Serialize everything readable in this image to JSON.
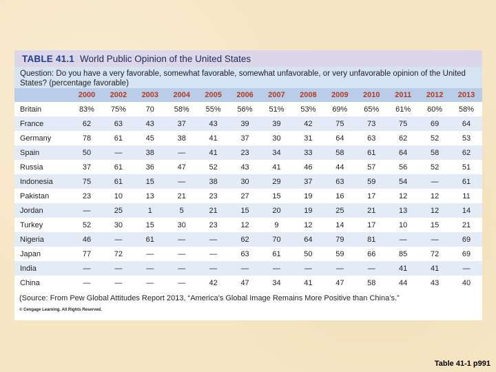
{
  "table": {
    "label": "TABLE 41.1",
    "title": "World Public Opinion of the United States",
    "question": "Question: Do you have a very favorable, somewhat favorable, somewhat unfavorable, or very unfavorable opinion of the United States? (percentage favorable)",
    "columns": [
      "2000",
      "2002",
      "2003",
      "2004",
      "2005",
      "2006",
      "2007",
      "2008",
      "2009",
      "2010",
      "2011",
      "2012",
      "2013"
    ],
    "rows": [
      {
        "country": "Britain",
        "values": [
          "83%",
          "75%",
          "70",
          "58%",
          "55%",
          "56%",
          "51%",
          "53%",
          "69%",
          "65%",
          "61%",
          "60%",
          "58%"
        ]
      },
      {
        "country": "France",
        "values": [
          "62",
          "63",
          "43",
          "37",
          "43",
          "39",
          "39",
          "42",
          "75",
          "73",
          "75",
          "69",
          "64"
        ]
      },
      {
        "country": "Germany",
        "values": [
          "78",
          "61",
          "45",
          "38",
          "41",
          "37",
          "30",
          "31",
          "64",
          "63",
          "62",
          "52",
          "53"
        ]
      },
      {
        "country": "Spain",
        "values": [
          "50",
          "—",
          "38",
          "—",
          "41",
          "23",
          "34",
          "33",
          "58",
          "61",
          "64",
          "58",
          "62"
        ]
      },
      {
        "country": "Russia",
        "values": [
          "37",
          "61",
          "36",
          "47",
          "52",
          "43",
          "41",
          "46",
          "44",
          "57",
          "56",
          "52",
          "51"
        ]
      },
      {
        "country": "Indonesia",
        "values": [
          "75",
          "61",
          "15",
          "—",
          "38",
          "30",
          "29",
          "37",
          "63",
          "59",
          "54",
          "—",
          "61"
        ]
      },
      {
        "country": "Pakistan",
        "values": [
          "23",
          "10",
          "13",
          "21",
          "23",
          "27",
          "15",
          "19",
          "16",
          "17",
          "12",
          "12",
          "11"
        ]
      },
      {
        "country": "Jordan",
        "values": [
          "—",
          "25",
          "1",
          "5",
          "21",
          "15",
          "20",
          "19",
          "25",
          "21",
          "13",
          "12",
          "14"
        ]
      },
      {
        "country": "Turkey",
        "values": [
          "52",
          "30",
          "15",
          "30",
          "23",
          "12",
          "9",
          "12",
          "14",
          "17",
          "10",
          "15",
          "21"
        ]
      },
      {
        "country": "Nigeria",
        "values": [
          "46",
          "—",
          "61",
          "—",
          "—",
          "62",
          "70",
          "64",
          "79",
          "81",
          "—",
          "—",
          "69"
        ]
      },
      {
        "country": "Japan",
        "values": [
          "77",
          "72",
          "—",
          "—",
          "—",
          "63",
          "61",
          "50",
          "59",
          "66",
          "85",
          "72",
          "69"
        ]
      },
      {
        "country": "India",
        "values": [
          "—",
          "—",
          "—",
          "—",
          "—",
          "—",
          "—",
          "—",
          "—",
          "—",
          "41",
          "41",
          "—"
        ]
      },
      {
        "country": "China",
        "values": [
          "—",
          "—",
          "—",
          "—",
          "42",
          "47",
          "34",
          "41",
          "47",
          "58",
          "44",
          "43",
          "40"
        ]
      }
    ],
    "source": "(Source: From Pew Global Attitudes Report 2013, “America’s Global Image Remains More Positive than China’s.”",
    "copyright": "© Cengage Learning. All Rights Reserved."
  },
  "caption": "Table 41-1 p991",
  "colors": {
    "background": "#f6e6c4",
    "title_bar": "#dcd6e8",
    "question_bg": "#d6e3f3",
    "header_bg": "#b9cde9",
    "header_text": "#b23a1e",
    "stripe": "#e3ebf6"
  }
}
